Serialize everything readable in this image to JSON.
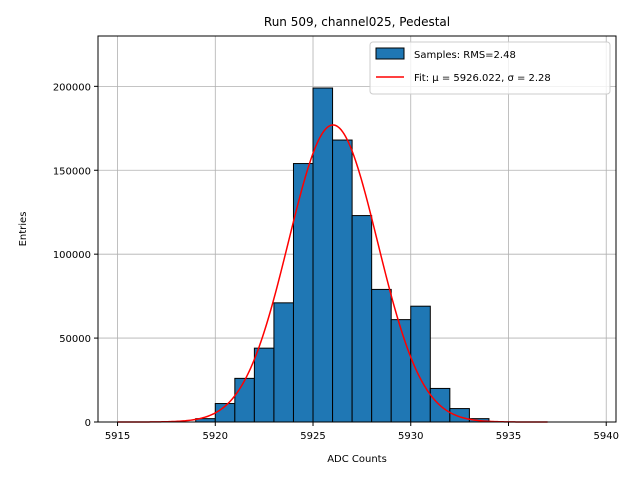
{
  "chart_data": {
    "type": "bar",
    "title": "Run 509, channel025, Pedestal",
    "xlabel": "ADC Counts",
    "ylabel": "Entries",
    "xlim": [
      5914,
      5940.5
    ],
    "ylim": [
      0,
      230000
    ],
    "x_ticks": [
      5915,
      5920,
      5925,
      5930,
      5935,
      5940
    ],
    "y_ticks": [
      0,
      50000,
      100000,
      150000,
      200000
    ],
    "grid": true,
    "legend_position": "top-right",
    "histogram": {
      "name": "Samples: RMS=2.48",
      "color": "#1f77b4",
      "edge_color": "#000000",
      "bin_width": 1,
      "bins": [
        {
          "left": 5919,
          "value": 2000
        },
        {
          "left": 5920,
          "value": 11000
        },
        {
          "left": 5921,
          "value": 26000
        },
        {
          "left": 5922,
          "value": 44000
        },
        {
          "left": 5923,
          "value": 71000
        },
        {
          "left": 5924,
          "value": 154000
        },
        {
          "left": 5925,
          "value": 199000
        },
        {
          "left": 5926,
          "value": 168000
        },
        {
          "left": 5927,
          "value": 123000
        },
        {
          "left": 5928,
          "value": 79000
        },
        {
          "left": 5929,
          "value": 61000
        },
        {
          "left": 5930,
          "value": 69000
        },
        {
          "left": 5931,
          "value": 20000
        },
        {
          "left": 5932,
          "value": 8000
        },
        {
          "left": 5933,
          "value": 2000
        }
      ]
    },
    "fit": {
      "name": "Fit: μ = 5926.022, σ = 2.28",
      "color": "#ff0000",
      "mean": 5926.022,
      "sigma": 2.28,
      "amplitude": 177000,
      "x_range": [
        5915,
        5937
      ]
    }
  }
}
